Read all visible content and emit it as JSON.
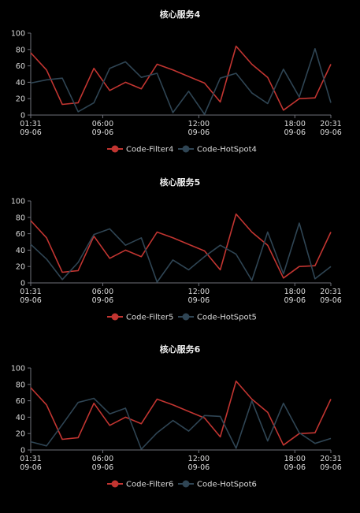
{
  "chart_data": [
    {
      "type": "line",
      "title": "核心服务4",
      "xlabel": "",
      "ylabel": "",
      "ylim": [
        0,
        100
      ],
      "yticks": [
        0,
        20,
        40,
        60,
        80,
        100
      ],
      "x_tick_labels": [
        {
          "index": 0,
          "time": "01:31",
          "date": "09-06"
        },
        {
          "index": 6,
          "time": "06:00",
          "date": "09-06"
        },
        {
          "index": 14,
          "time": "12:00",
          "date": "09-06"
        },
        {
          "index": 22,
          "time": "18:00",
          "date": "09-06"
        },
        {
          "index": 25,
          "time": "20:31",
          "date": "09-06"
        }
      ],
      "x_count": 26,
      "legend_position": "bottom",
      "series": [
        {
          "name": "Code-Filter4",
          "color": "#c23531",
          "values": [
            76,
            55,
            13,
            15,
            57,
            30,
            40,
            32,
            62,
            55,
            47,
            39,
            16,
            84,
            62,
            46,
            6,
            20,
            21,
            62
          ]
        },
        {
          "name": "Code-HotSpot4",
          "color": "#2f4554",
          "values": [
            39,
            43,
            45,
            4,
            15,
            57,
            65,
            46,
            51,
            3,
            29,
            1,
            45,
            51,
            27,
            14,
            56,
            22,
            81,
            15
          ]
        }
      ]
    },
    {
      "type": "line",
      "title": "核心服务5",
      "xlabel": "",
      "ylabel": "",
      "ylim": [
        0,
        100
      ],
      "yticks": [
        0,
        20,
        40,
        60,
        80,
        100
      ],
      "x_tick_labels": [
        {
          "index": 0,
          "time": "01:31",
          "date": "09-06"
        },
        {
          "index": 6,
          "time": "06:00",
          "date": "09-06"
        },
        {
          "index": 14,
          "time": "12:00",
          "date": "09-06"
        },
        {
          "index": 22,
          "time": "18:00",
          "date": "09-06"
        },
        {
          "index": 25,
          "time": "20:31",
          "date": "09-06"
        }
      ],
      "x_count": 26,
      "legend_position": "bottom",
      "series": [
        {
          "name": "Code-Filter5",
          "color": "#c23531",
          "values": [
            76,
            55,
            13,
            15,
            57,
            30,
            40,
            32,
            62,
            55,
            47,
            39,
            16,
            84,
            62,
            46,
            6,
            20,
            21,
            62
          ]
        },
        {
          "name": "Code-HotSpot5",
          "color": "#2f4554",
          "values": [
            47,
            29,
            4,
            25,
            59,
            66,
            46,
            55,
            1,
            28,
            16,
            32,
            46,
            35,
            3,
            62,
            11,
            73,
            5,
            20
          ]
        }
      ]
    },
    {
      "type": "line",
      "title": "核心服务6",
      "xlabel": "",
      "ylabel": "",
      "ylim": [
        0,
        100
      ],
      "yticks": [
        0,
        20,
        40,
        60,
        80,
        100
      ],
      "x_tick_labels": [
        {
          "index": 0,
          "time": "01:31",
          "date": "09-06"
        },
        {
          "index": 6,
          "time": "06:00",
          "date": "09-06"
        },
        {
          "index": 14,
          "time": "12:00",
          "date": "09-06"
        },
        {
          "index": 22,
          "time": "18:00",
          "date": "09-06"
        },
        {
          "index": 25,
          "time": "20:31",
          "date": "09-06"
        }
      ],
      "x_count": 26,
      "legend_position": "bottom",
      "series": [
        {
          "name": "Code-Filter6",
          "color": "#c23531",
          "values": [
            76,
            55,
            13,
            15,
            57,
            30,
            40,
            32,
            62,
            55,
            47,
            39,
            16,
            84,
            62,
            46,
            6,
            20,
            21,
            62
          ]
        },
        {
          "name": "Code-HotSpot6",
          "color": "#2f4554",
          "values": [
            10,
            5,
            31,
            58,
            63,
            44,
            51,
            1,
            21,
            36,
            23,
            42,
            41,
            2,
            60,
            11,
            57,
            21,
            8,
            14
          ]
        }
      ]
    }
  ],
  "colors": {
    "background": "#000000",
    "axis": "#6e7079",
    "text": "#dddddd",
    "title": "#eeeeee"
  }
}
